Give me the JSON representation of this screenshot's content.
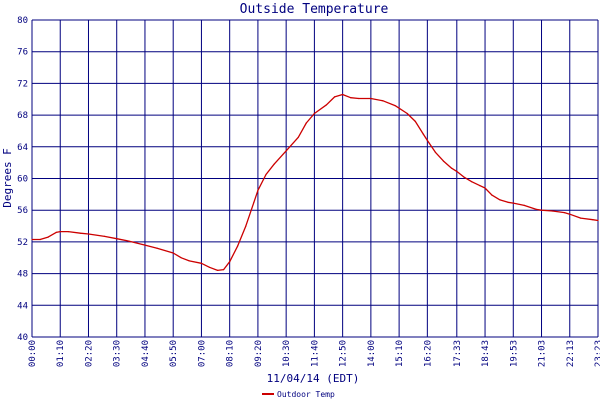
{
  "chart_data": {
    "type": "line",
    "title": "Outside Temperature",
    "xlabel": "11/04/14 (EDT)",
    "ylabel": "Degrees F",
    "ylim": [
      40,
      80
    ],
    "yticks": [
      "40",
      "44",
      "48",
      "52",
      "56",
      "60",
      "64",
      "68",
      "72",
      "76",
      "80"
    ],
    "xticks": [
      "00:00",
      "01:10",
      "02:20",
      "03:30",
      "04:40",
      "05:50",
      "07:00",
      "08:10",
      "09:20",
      "10:30",
      "11:40",
      "12:50",
      "14:00",
      "15:10",
      "16:20",
      "17:33",
      "18:43",
      "19:53",
      "21:03",
      "22:13",
      "23:23"
    ],
    "grid": true,
    "legend_position": "bottom-left",
    "colors": {
      "series": "#cc0000",
      "grid": "#00007f",
      "text": "#00007f",
      "background": "#ffffff"
    },
    "series": [
      {
        "name": "Outdoor Temp",
        "points": [
          [
            "00:00",
            52.3
          ],
          [
            "00:20",
            52.3
          ],
          [
            "00:40",
            52.6
          ],
          [
            "01:00",
            53.2
          ],
          [
            "01:10",
            53.3
          ],
          [
            "01:30",
            53.3
          ],
          [
            "02:00",
            53.1
          ],
          [
            "02:20",
            53.0
          ],
          [
            "03:00",
            52.7
          ],
          [
            "03:30",
            52.4
          ],
          [
            "04:00",
            52.1
          ],
          [
            "04:40",
            51.6
          ],
          [
            "05:10",
            51.2
          ],
          [
            "05:50",
            50.6
          ],
          [
            "06:10",
            50.0
          ],
          [
            "06:30",
            49.6
          ],
          [
            "07:00",
            49.3
          ],
          [
            "07:20",
            48.8
          ],
          [
            "07:40",
            48.4
          ],
          [
            "07:55",
            48.5
          ],
          [
            "08:10",
            49.5
          ],
          [
            "08:30",
            51.5
          ],
          [
            "08:50",
            54.0
          ],
          [
            "09:10",
            57.0
          ],
          [
            "09:20",
            58.5
          ],
          [
            "09:40",
            60.5
          ],
          [
            "10:00",
            61.8
          ],
          [
            "10:30",
            63.5
          ],
          [
            "11:00",
            65.2
          ],
          [
            "11:20",
            67.0
          ],
          [
            "11:40",
            68.2
          ],
          [
            "12:10",
            69.3
          ],
          [
            "12:30",
            70.3
          ],
          [
            "12:50",
            70.6
          ],
          [
            "13:10",
            70.2
          ],
          [
            "13:30",
            70.1
          ],
          [
            "14:00",
            70.1
          ],
          [
            "14:30",
            69.8
          ],
          [
            "15:00",
            69.2
          ],
          [
            "15:30",
            68.2
          ],
          [
            "15:50",
            67.2
          ],
          [
            "16:10",
            65.6
          ],
          [
            "16:20",
            64.8
          ],
          [
            "16:40",
            63.3
          ],
          [
            "17:00",
            62.2
          ],
          [
            "17:20",
            61.3
          ],
          [
            "17:33",
            60.9
          ],
          [
            "17:50",
            60.2
          ],
          [
            "18:10",
            59.6
          ],
          [
            "18:30",
            59.1
          ],
          [
            "18:43",
            58.8
          ],
          [
            "19:00",
            57.9
          ],
          [
            "19:20",
            57.3
          ],
          [
            "19:40",
            57.0
          ],
          [
            "19:53",
            56.9
          ],
          [
            "20:20",
            56.6
          ],
          [
            "20:50",
            56.1
          ],
          [
            "21:03",
            56.0
          ],
          [
            "21:30",
            55.9
          ],
          [
            "22:00",
            55.7
          ],
          [
            "22:13",
            55.5
          ],
          [
            "22:40",
            55.0
          ],
          [
            "23:10",
            54.8
          ],
          [
            "23:23",
            54.7
          ]
        ]
      }
    ]
  }
}
